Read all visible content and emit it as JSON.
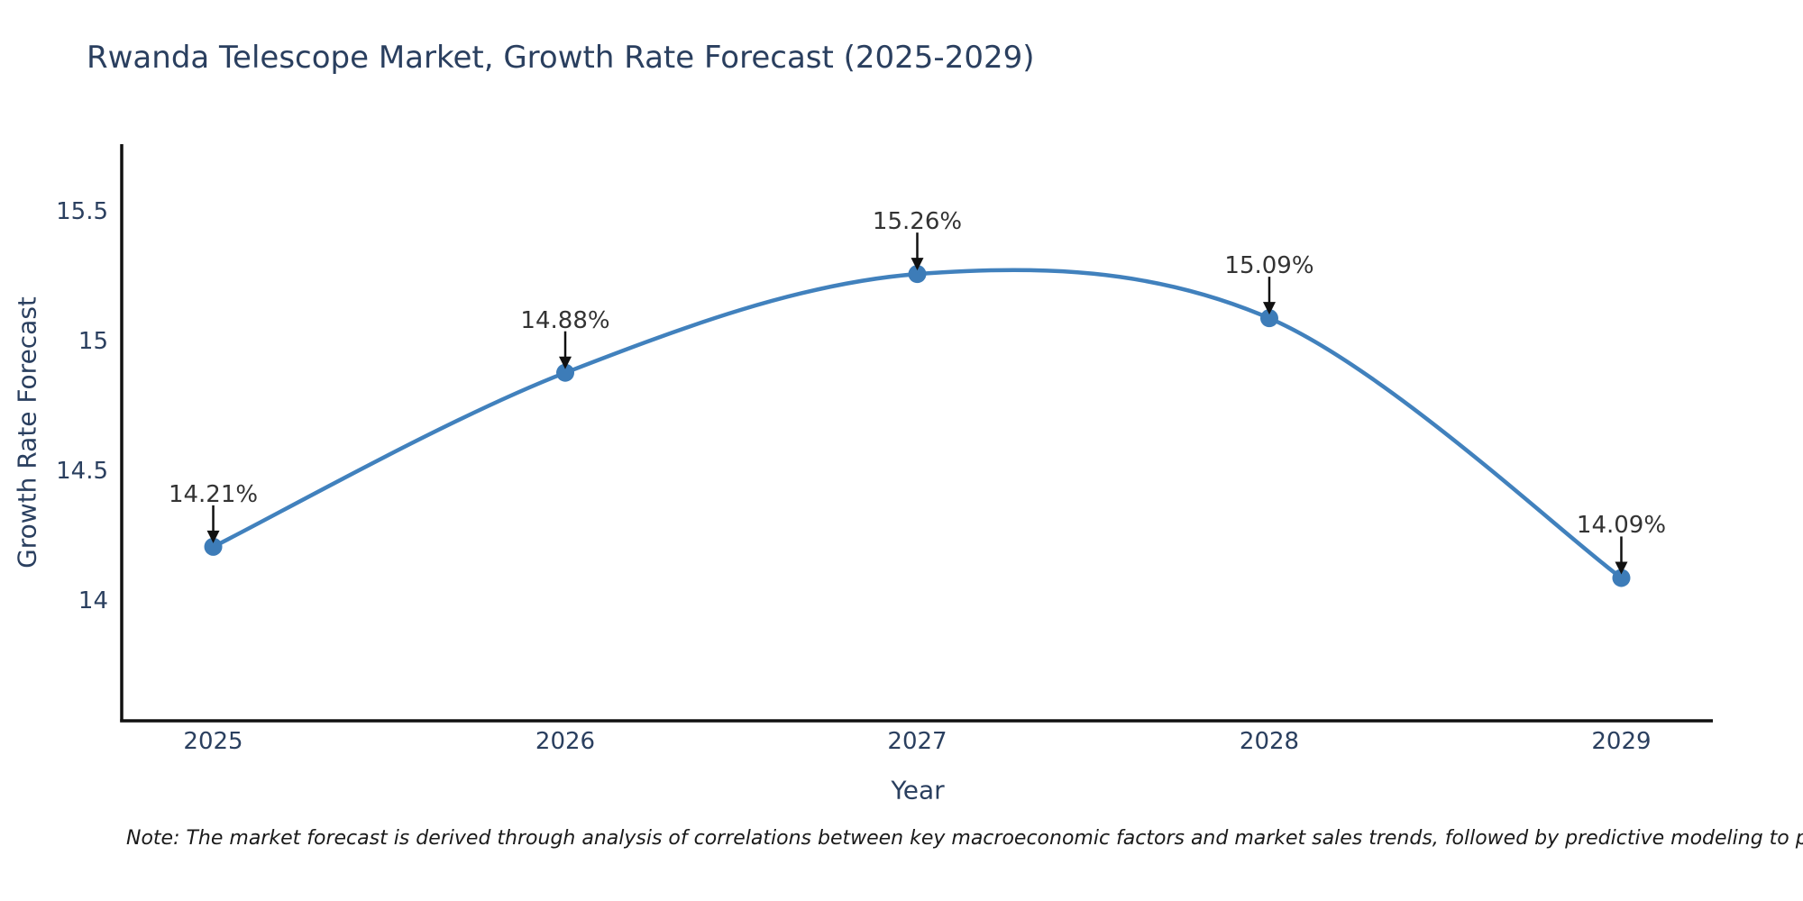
{
  "title": "Rwanda Telescope Market, Growth Rate Forecast (2025-2029)",
  "footnote": "Note: The market forecast is derived through analysis of correlations between key macroeconomic factors and market sales trends, followed by predictive modeling to project future sal",
  "chart_data": {
    "type": "line",
    "line_shape": "spline",
    "title": "Rwanda Telescope Market, Growth Rate Forecast (2025-2029)",
    "xlabel": "Year",
    "ylabel": "Growth Rate Forecast",
    "x": [
      2025,
      2026,
      2027,
      2028,
      2029
    ],
    "values": [
      14.21,
      14.88,
      15.26,
      15.09,
      14.09
    ],
    "point_labels": [
      "14.21%",
      "14.88%",
      "15.26%",
      "15.09%",
      "14.09%"
    ],
    "x_tick_labels": [
      "2025",
      "2026",
      "2027",
      "2028",
      "2029"
    ],
    "y_ticks": [
      14,
      14.5,
      15,
      15.5
    ],
    "y_tick_labels": [
      "14",
      "14.5",
      "15",
      "15.5"
    ],
    "xlim": [
      2024.74,
      2029.26
    ],
    "ylim": [
      13.54,
      15.76
    ],
    "grid": false,
    "legend": "none",
    "colors": {
      "line": "#4181bd",
      "marker": "#3d7cb8",
      "axis": "#111111",
      "axis_text": "#2a3f5f",
      "annotation_text": "#333333",
      "arrow": "#111111",
      "background": "#ffffff"
    }
  }
}
